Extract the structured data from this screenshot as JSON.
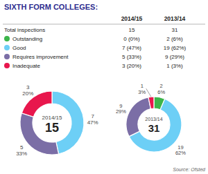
{
  "chart_data": [
    {
      "type": "table",
      "title": "SIXTH FORM COLLEGES:",
      "source": "Source: Ofsted",
      "columns": [
        "2014/15",
        "2013/14"
      ],
      "rows": [
        {
          "name": "Total inspections",
          "cells": [
            "15",
            "31"
          ]
        },
        {
          "name": "Outstanding",
          "color": "#3cb54a",
          "cells": [
            "0 (0%)",
            "2 (6%)"
          ]
        },
        {
          "name": "Good",
          "color": "#6dcff6",
          "cells": [
            "7 (47%)",
            "19 (62%)"
          ]
        },
        {
          "name": "Requires improvement",
          "color": "#7b6ea6",
          "cells": [
            "5 (33%)",
            "9 (29%)"
          ]
        },
        {
          "name": "Inadequate",
          "color": "#e8174d",
          "cells": [
            "3 (20%)",
            "1 (3%)"
          ]
        }
      ]
    },
    {
      "type": "pie",
      "center_label": "2014/15",
      "total": 15,
      "values": [
        7,
        5,
        3
      ],
      "share_labels": [
        "47%",
        "33%",
        "20%"
      ],
      "colors": [
        "#6dcff6",
        "#7b6ea6",
        "#e8174d"
      ],
      "data_labels": true
    },
    {
      "type": "pie",
      "center_label": "2013/14",
      "total": 31,
      "values": [
        2,
        19,
        9,
        1
      ],
      "share_labels": [
        "6%",
        "62%",
        "29%",
        "3%"
      ],
      "colors": [
        "#3cb54a",
        "#6dcff6",
        "#7b6ea6",
        "#e8174d"
      ],
      "data_labels": true
    }
  ]
}
